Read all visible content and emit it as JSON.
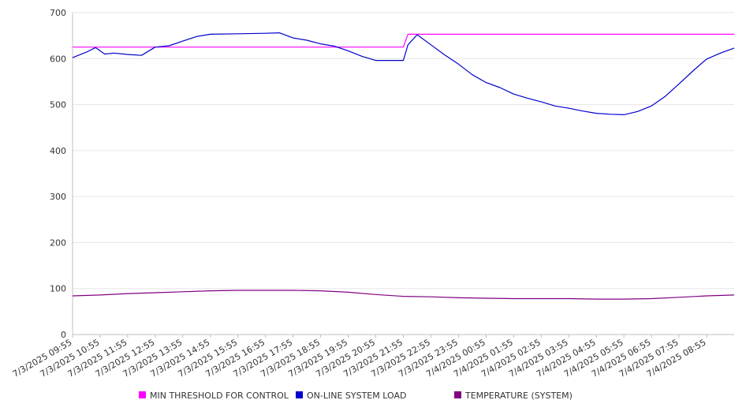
{
  "chart_data": {
    "type": "line",
    "title": "",
    "xlabel": "",
    "ylabel": "",
    "ylim": [
      0,
      700
    ],
    "yticks": [
      0,
      100,
      200,
      300,
      400,
      500,
      600,
      700
    ],
    "xlim": [
      "7/3/2025 09:55",
      "7/4/2025 09:55"
    ],
    "x_tick_labels": [
      "7/3/2025 09:55",
      "7/3/2025 10:55",
      "7/3/2025 11:55",
      "7/3/2025 12:55",
      "7/3/2025 13:55",
      "7/3/2025 14:55",
      "7/3/2025 15:55",
      "7/3/2025 16:55",
      "7/3/2025 17:55",
      "7/3/2025 18:55",
      "7/3/2025 19:55",
      "7/3/2025 20:55",
      "7/3/2025 21:55",
      "7/3/2025 22:55",
      "7/3/2025 23:55",
      "7/4/2025 00:55",
      "7/4/2025 01:55",
      "7/4/2025 02:55",
      "7/4/2025 03:55",
      "7/4/2025 04:55",
      "7/4/2025 05:55",
      "7/4/2025 06:55",
      "7/4/2025 07:55",
      "7/4/2025 08:55"
    ],
    "grid": true,
    "legend": "bottom",
    "series": [
      {
        "name": "MIN THRESHOLD FOR CONTROL",
        "color": "#ff00ff",
        "points": [
          [
            "7/3/2025 09:55",
            625
          ],
          [
            "7/3/2025 21:55",
            625
          ],
          [
            "7/3/2025 22:05",
            653
          ],
          [
            "7/4/2025 09:55",
            653
          ]
        ]
      },
      {
        "name": "ON-LINE SYSTEM LOAD",
        "color": "#0000cc",
        "points": [
          [
            "7/3/2025 09:55",
            602
          ],
          [
            "7/3/2025 10:25",
            614
          ],
          [
            "7/3/2025 10:45",
            624
          ],
          [
            "7/3/2025 11:05",
            610
          ],
          [
            "7/3/2025 11:25",
            612
          ],
          [
            "7/3/2025 11:55",
            609
          ],
          [
            "7/3/2025 12:25",
            607
          ],
          [
            "7/3/2025 12:55",
            625
          ],
          [
            "7/3/2025 13:25",
            628
          ],
          [
            "7/3/2025 13:55",
            638
          ],
          [
            "7/3/2025 14:25",
            648
          ],
          [
            "7/3/2025 14:55",
            653
          ],
          [
            "7/3/2025 15:55",
            654
          ],
          [
            "7/3/2025 16:55",
            655
          ],
          [
            "7/3/2025 17:25",
            656
          ],
          [
            "7/3/2025 17:55",
            645
          ],
          [
            "7/3/2025 18:25",
            640
          ],
          [
            "7/3/2025 18:55",
            632
          ],
          [
            "7/3/2025 19:25",
            627
          ],
          [
            "7/3/2025 19:55",
            617
          ],
          [
            "7/3/2025 20:25",
            605
          ],
          [
            "7/3/2025 20:55",
            596
          ],
          [
            "7/3/2025 21:25",
            596
          ],
          [
            "7/3/2025 21:55",
            596
          ],
          [
            "7/3/2025 22:05",
            630
          ],
          [
            "7/3/2025 22:25",
            652
          ],
          [
            "7/3/2025 22:55",
            630
          ],
          [
            "7/3/2025 23:25",
            608
          ],
          [
            "7/3/2025 23:55",
            588
          ],
          [
            "7/4/2025 00:25",
            565
          ],
          [
            "7/4/2025 00:55",
            548
          ],
          [
            "7/4/2025 01:25",
            537
          ],
          [
            "7/4/2025 01:55",
            523
          ],
          [
            "7/4/2025 02:25",
            514
          ],
          [
            "7/4/2025 02:55",
            506
          ],
          [
            "7/4/2025 03:25",
            497
          ],
          [
            "7/4/2025 03:55",
            492
          ],
          [
            "7/4/2025 04:25",
            486
          ],
          [
            "7/4/2025 04:55",
            481
          ],
          [
            "7/4/2025 05:25",
            479
          ],
          [
            "7/4/2025 05:55",
            478
          ],
          [
            "7/4/2025 06:25",
            485
          ],
          [
            "7/4/2025 06:55",
            497
          ],
          [
            "7/4/2025 07:25",
            518
          ],
          [
            "7/4/2025 07:55",
            545
          ],
          [
            "7/4/2025 08:25",
            573
          ],
          [
            "7/4/2025 08:55",
            599
          ],
          [
            "7/4/2025 09:25",
            612
          ],
          [
            "7/4/2025 09:55",
            623
          ]
        ]
      },
      {
        "name": "TEMPERATURE (SYSTEM)",
        "color": "#800080",
        "points": [
          [
            "7/3/2025 09:55",
            84
          ],
          [
            "7/3/2025 10:55",
            86
          ],
          [
            "7/3/2025 11:55",
            89
          ],
          [
            "7/3/2025 12:55",
            91
          ],
          [
            "7/3/2025 13:55",
            93
          ],
          [
            "7/3/2025 14:55",
            95
          ],
          [
            "7/3/2025 15:55",
            96
          ],
          [
            "7/3/2025 16:55",
            96
          ],
          [
            "7/3/2025 17:55",
            96
          ],
          [
            "7/3/2025 18:55",
            95
          ],
          [
            "7/3/2025 19:55",
            92
          ],
          [
            "7/3/2025 20:55",
            87
          ],
          [
            "7/3/2025 21:55",
            83
          ],
          [
            "7/3/2025 22:55",
            82
          ],
          [
            "7/3/2025 23:55",
            80
          ],
          [
            "7/4/2025 00:55",
            79
          ],
          [
            "7/4/2025 01:55",
            78
          ],
          [
            "7/4/2025 02:55",
            78
          ],
          [
            "7/4/2025 03:55",
            78
          ],
          [
            "7/4/2025 04:55",
            77
          ],
          [
            "7/4/2025 05:55",
            77
          ],
          [
            "7/4/2025 06:55",
            78
          ],
          [
            "7/4/2025 07:55",
            81
          ],
          [
            "7/4/2025 08:55",
            84
          ],
          [
            "7/4/2025 09:55",
            86
          ]
        ]
      }
    ]
  }
}
